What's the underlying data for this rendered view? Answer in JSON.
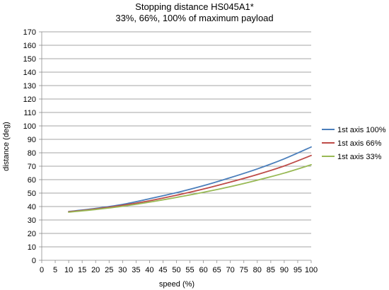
{
  "chart_data": {
    "type": "line",
    "title": "Stopping distance HS045A1*",
    "subtitle": "33%, 66%, 100% of maximum payload",
    "xlabel": "speed (%)",
    "ylabel": "distance (deg)",
    "xlim": [
      0,
      100
    ],
    "ylim": [
      0,
      170
    ],
    "xticks": [
      0,
      5,
      10,
      15,
      20,
      25,
      30,
      35,
      40,
      45,
      50,
      55,
      60,
      65,
      70,
      75,
      80,
      85,
      90,
      95,
      100
    ],
    "yticks": [
      0,
      10,
      20,
      30,
      40,
      50,
      60,
      70,
      80,
      90,
      100,
      110,
      120,
      130,
      140,
      150,
      160,
      170
    ],
    "grid": "horizontal",
    "legend_position": "right",
    "x": [
      10,
      20,
      30,
      40,
      50,
      60,
      70,
      80,
      90,
      100
    ],
    "series": [
      {
        "name": "1st axis 100%",
        "color": "#4a7ebb",
        "values": [
          36.3,
          38.6,
          41.6,
          45.8,
          50.3,
          55.5,
          61.5,
          68.0,
          75.5,
          84.3
        ]
      },
      {
        "name": "1st axis 66%",
        "color": "#be4b48",
        "values": [
          36.1,
          38.2,
          40.9,
          44.3,
          48.4,
          53.0,
          58.2,
          63.8,
          70.2,
          78.0
        ]
      },
      {
        "name": "1st axis 33%",
        "color": "#98b954",
        "values": [
          35.8,
          37.8,
          40.2,
          43.3,
          46.8,
          50.6,
          54.8,
          59.6,
          64.9,
          71.1
        ]
      }
    ]
  }
}
